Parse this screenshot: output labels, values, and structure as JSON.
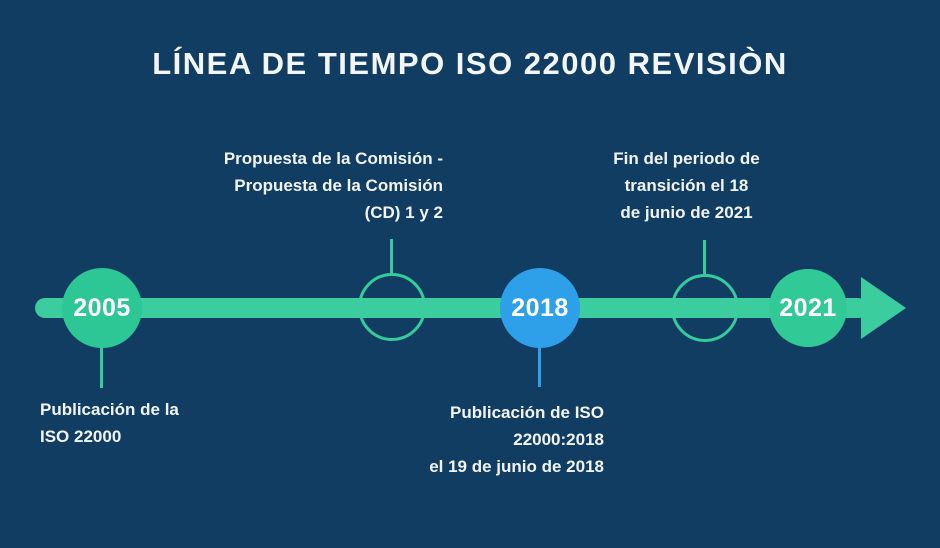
{
  "title": "LÍNEA DE TIEMPO ISO 22000 REVISIÒN",
  "colors": {
    "background": "#123d62",
    "timeline_green": "#3bcd9e",
    "node_green_2005": "#2cc795",
    "node_green_2021": "#31c996",
    "node_blue_2018": "#2ea0ea",
    "outline_circle_stroke": "#35cb9c",
    "text": "#f1f4f7"
  },
  "milestones": [
    {
      "id": "2005",
      "year": "2005",
      "type": "filled-green",
      "label_position": "below",
      "label_lines": [
        "Publicación de la",
        "ISO 22000"
      ]
    },
    {
      "id": "proposal",
      "year": "",
      "type": "outline",
      "label_position": "above",
      "label_lines": [
        "Propuesta de la Comisión -",
        "Propuesta de la Comisión",
        "(CD) 1 y 2"
      ]
    },
    {
      "id": "2018",
      "year": "2018",
      "type": "filled-blue",
      "label_position": "below",
      "label_lines": [
        "Publicación de ISO",
        "22000:2018",
        "el 19 de junio de 2018"
      ]
    },
    {
      "id": "transition",
      "year": "",
      "type": "outline",
      "label_position": "above",
      "label_lines": [
        "Fin del periodo de",
        "transición el 18",
        "de junio de 2021"
      ]
    },
    {
      "id": "2021",
      "year": "2021",
      "type": "filled-green",
      "label_position": "none",
      "label_lines": []
    }
  ]
}
